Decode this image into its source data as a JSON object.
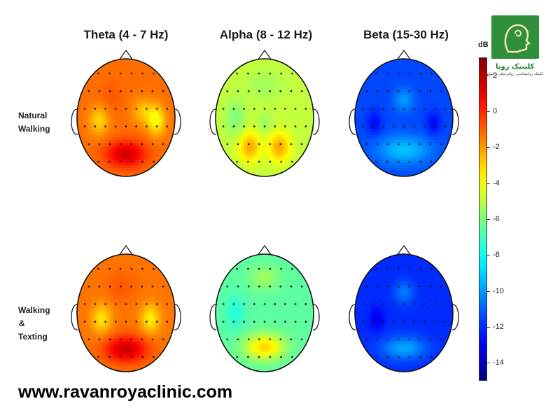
{
  "chart_data": {
    "type": "heatmap",
    "subtype": "eeg-topographic-map",
    "columns": [
      "Theta (4 - 7 Hz)",
      "Alpha (8 - 12 Hz)",
      "Beta (15-30 Hz)"
    ],
    "rows": [
      {
        "label_lines": [
          "Natural",
          "Walking"
        ]
      },
      {
        "label_lines": [
          "Walking",
          "&",
          "Texting"
        ]
      }
    ],
    "colorbar": {
      "title": "dB",
      "min": -15,
      "max": 3,
      "ticks": [
        "2",
        "0",
        "-2",
        "-4",
        "-6",
        "-8",
        "-10",
        "-12",
        "-14"
      ],
      "tick_values": [
        2,
        0,
        -2,
        -4,
        -6,
        -8,
        -10,
        -12,
        -14
      ],
      "colormap": "jet"
    },
    "maps": [
      {
        "row": 0,
        "col": 0,
        "base": -1.2,
        "blobs": [
          {
            "x": 0.0,
            "y": 0.62,
            "sx": 0.4,
            "sy": 0.22,
            "a": 2.8
          },
          {
            "x": -0.3,
            "y": -0.35,
            "sx": 0.25,
            "sy": 0.25,
            "a": 0.4
          },
          {
            "x": 0.35,
            "y": -0.1,
            "sx": 0.22,
            "sy": 0.22,
            "a": -1.5
          },
          {
            "x": -0.55,
            "y": 0.05,
            "sx": 0.2,
            "sy": 0.25,
            "a": -1.8
          },
          {
            "x": 0.62,
            "y": 0.05,
            "sx": 0.18,
            "sy": 0.25,
            "a": -2.6
          }
        ]
      },
      {
        "row": 0,
        "col": 1,
        "base": -4.8,
        "blobs": [
          {
            "x": -0.3,
            "y": 0.5,
            "sx": 0.22,
            "sy": 0.25,
            "a": 2.6
          },
          {
            "x": 0.3,
            "y": 0.5,
            "sx": 0.22,
            "sy": 0.25,
            "a": 2.6
          },
          {
            "x": 0.0,
            "y": 0.1,
            "sx": 0.15,
            "sy": 0.15,
            "a": -0.8
          },
          {
            "x": 0.0,
            "y": -0.55,
            "sx": 0.35,
            "sy": 0.25,
            "a": -0.6
          },
          {
            "x": -0.6,
            "y": 0.0,
            "sx": 0.2,
            "sy": 0.3,
            "a": -1.2
          }
        ]
      },
      {
        "row": 0,
        "col": 2,
        "base": -11.5,
        "blobs": [
          {
            "x": 0.0,
            "y": 0.55,
            "sx": 0.55,
            "sy": 0.25,
            "a": 2.2
          },
          {
            "x": 0.0,
            "y": -0.3,
            "sx": 0.2,
            "sy": 0.2,
            "a": 1.5
          },
          {
            "x": -0.6,
            "y": 0.1,
            "sx": 0.15,
            "sy": 0.2,
            "a": -1.2
          },
          {
            "x": 0.6,
            "y": 0.1,
            "sx": 0.15,
            "sy": 0.2,
            "a": -1.2
          }
        ]
      },
      {
        "row": 1,
        "col": 0,
        "base": -1.3,
        "blobs": [
          {
            "x": 0.0,
            "y": 0.62,
            "sx": 0.42,
            "sy": 0.22,
            "a": 3.0
          },
          {
            "x": -0.1,
            "y": -0.45,
            "sx": 0.3,
            "sy": 0.25,
            "a": 0.5
          },
          {
            "x": -0.5,
            "y": 0.1,
            "sx": 0.2,
            "sy": 0.25,
            "a": -2.0
          },
          {
            "x": 0.5,
            "y": 0.1,
            "sx": 0.2,
            "sy": 0.25,
            "a": -2.2
          }
        ]
      },
      {
        "row": 1,
        "col": 1,
        "base": -6.6,
        "blobs": [
          {
            "x": 0.0,
            "y": 0.58,
            "sx": 0.4,
            "sy": 0.22,
            "a": 3.6
          },
          {
            "x": 0.0,
            "y": -0.6,
            "sx": 0.3,
            "sy": 0.2,
            "a": 1.2
          },
          {
            "x": -0.6,
            "y": 0.0,
            "sx": 0.2,
            "sy": 0.3,
            "a": -1.0
          }
        ]
      },
      {
        "row": 1,
        "col": 2,
        "base": -12.0,
        "blobs": [
          {
            "x": 0.0,
            "y": 0.6,
            "sx": 0.45,
            "sy": 0.2,
            "a": 2.2
          },
          {
            "x": 0.0,
            "y": -0.35,
            "sx": 0.2,
            "sy": 0.2,
            "a": 1.4
          },
          {
            "x": -0.55,
            "y": 0.1,
            "sx": 0.15,
            "sy": 0.2,
            "a": -1.0
          }
        ]
      }
    ]
  },
  "branding": {
    "logo_name": "کلینیک رویا",
    "logo_subtitle": "کلینیک روانشناسی، روانپزشکی و مشاوره",
    "website": "www.ravanroyaclinic.com"
  }
}
